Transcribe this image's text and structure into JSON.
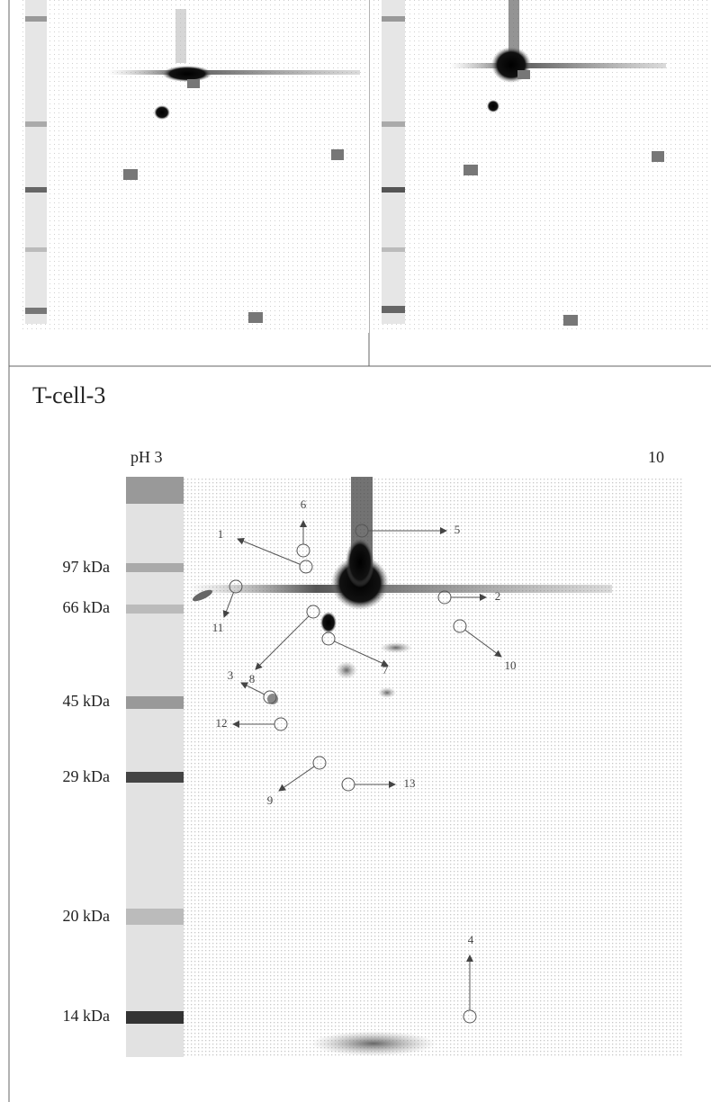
{
  "panel_title": "T-cell-3",
  "ph_axis": {
    "start": "pH 3",
    "end": "10"
  },
  "mw_labels": [
    "97 kDa",
    "66 kDa",
    "45 kDa",
    "29 kDa",
    "20 kDa",
    "14 kDa"
  ],
  "spots": [
    "1",
    "2",
    "3",
    "4",
    "5",
    "6",
    "7",
    "8",
    "9",
    "10",
    "11",
    "12",
    "13"
  ]
}
